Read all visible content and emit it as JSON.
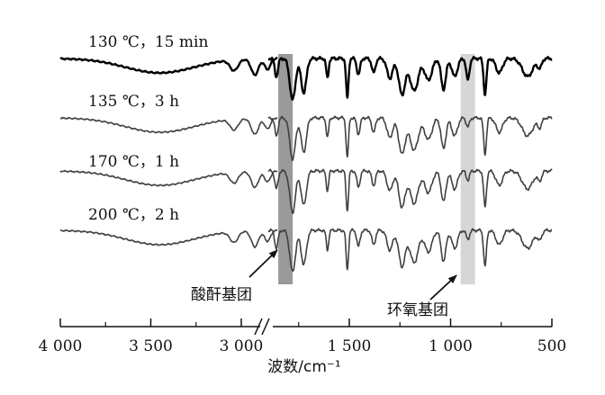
{
  "chart_data": {
    "type": "line",
    "title": "",
    "xlabel": "波数/cm⁻¹",
    "ylabel": "",
    "x_reversed": true,
    "x_axis_break": [
      2800,
      1900
    ],
    "x_ticks": [
      {
        "value": 4000,
        "label": "4 000"
      },
      {
        "value": 3500,
        "label": "3 500"
      },
      {
        "value": 3000,
        "label": "3 000"
      },
      {
        "value": 1500,
        "label": "1 500"
      },
      {
        "value": 1000,
        "label": "1 000"
      },
      {
        "value": 500,
        "label": "500"
      }
    ],
    "x_minor_ticks": [
      3750,
      3250,
      1750,
      1250,
      750
    ],
    "series": [
      {
        "name": "130 ℃，15 min",
        "color": "#000000",
        "stroke_width": 2.4
      },
      {
        "name": "135 ℃，3 h",
        "color": "#404040",
        "stroke_width": 1.6
      },
      {
        "name": "170 ℃，1 h",
        "color": "#404040",
        "stroke_width": 1.6
      },
      {
        "name": "200 ℃，2 h",
        "color": "#404040",
        "stroke_width": 1.6
      }
    ],
    "annotations": [
      {
        "text": "酸酐基团",
        "band_center": 1815,
        "band_color": "#9a9a9a"
      },
      {
        "text": "环氧基团",
        "band_center": 915,
        "band_color": "#d6d6d6"
      }
    ]
  }
}
